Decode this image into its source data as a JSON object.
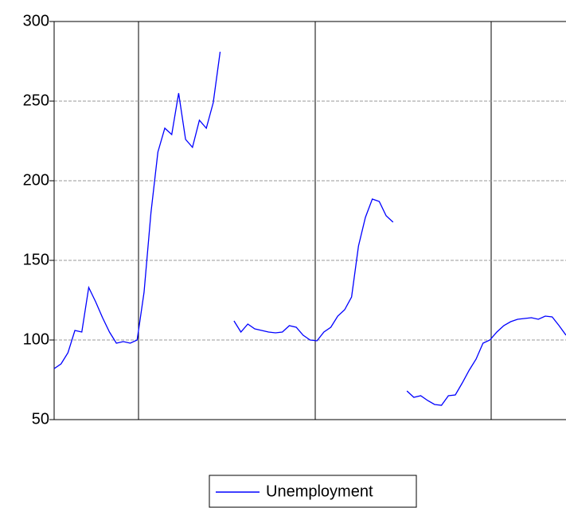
{
  "chart_data": {
    "type": "line",
    "categories": [
      null,
      null,
      null,
      null,
      null,
      null,
      null,
      null,
      null,
      null,
      null,
      null,
      null,
      null,
      null,
      null,
      null,
      null,
      null,
      null,
      null,
      null,
      null,
      null,
      null,
      null,
      null,
      null,
      null,
      null,
      null,
      null,
      null,
      null,
      null,
      null,
      null,
      null,
      null,
      null,
      null,
      null,
      null,
      null,
      null,
      null,
      null,
      null,
      null,
      null,
      null,
      null,
      null,
      null,
      null,
      null,
      null,
      null,
      null,
      null,
      null,
      null,
      null,
      null,
      null,
      null,
      null,
      null,
      null,
      null,
      null,
      null,
      null,
      null,
      null
    ],
    "series": [
      {
        "name": "Unemployment",
        "color": "#0000ff",
        "values": [
          82,
          85,
          92,
          106,
          105,
          133,
          124,
          114,
          105,
          98,
          99,
          98,
          100,
          130,
          180,
          218,
          233,
          229,
          255,
          226,
          221,
          238,
          233,
          249,
          281,
          null,
          112,
          105,
          110,
          107,
          106,
          105,
          104.5,
          105,
          109,
          108,
          103,
          100,
          99.5,
          105,
          108,
          115,
          119,
          127,
          159,
          177,
          188.5,
          187,
          178,
          174,
          null,
          68,
          64,
          65,
          62,
          59.5,
          59,
          65,
          65.5,
          73,
          81,
          88,
          98,
          100,
          105,
          109,
          111.5,
          113,
          113.5,
          114,
          113,
          115,
          114.5,
          109,
          103
        ]
      }
    ],
    "ylim": [
      50,
      300
    ],
    "yticks": [
      50,
      100,
      150,
      200,
      250,
      300
    ],
    "grid": true,
    "legend": "bottom"
  }
}
